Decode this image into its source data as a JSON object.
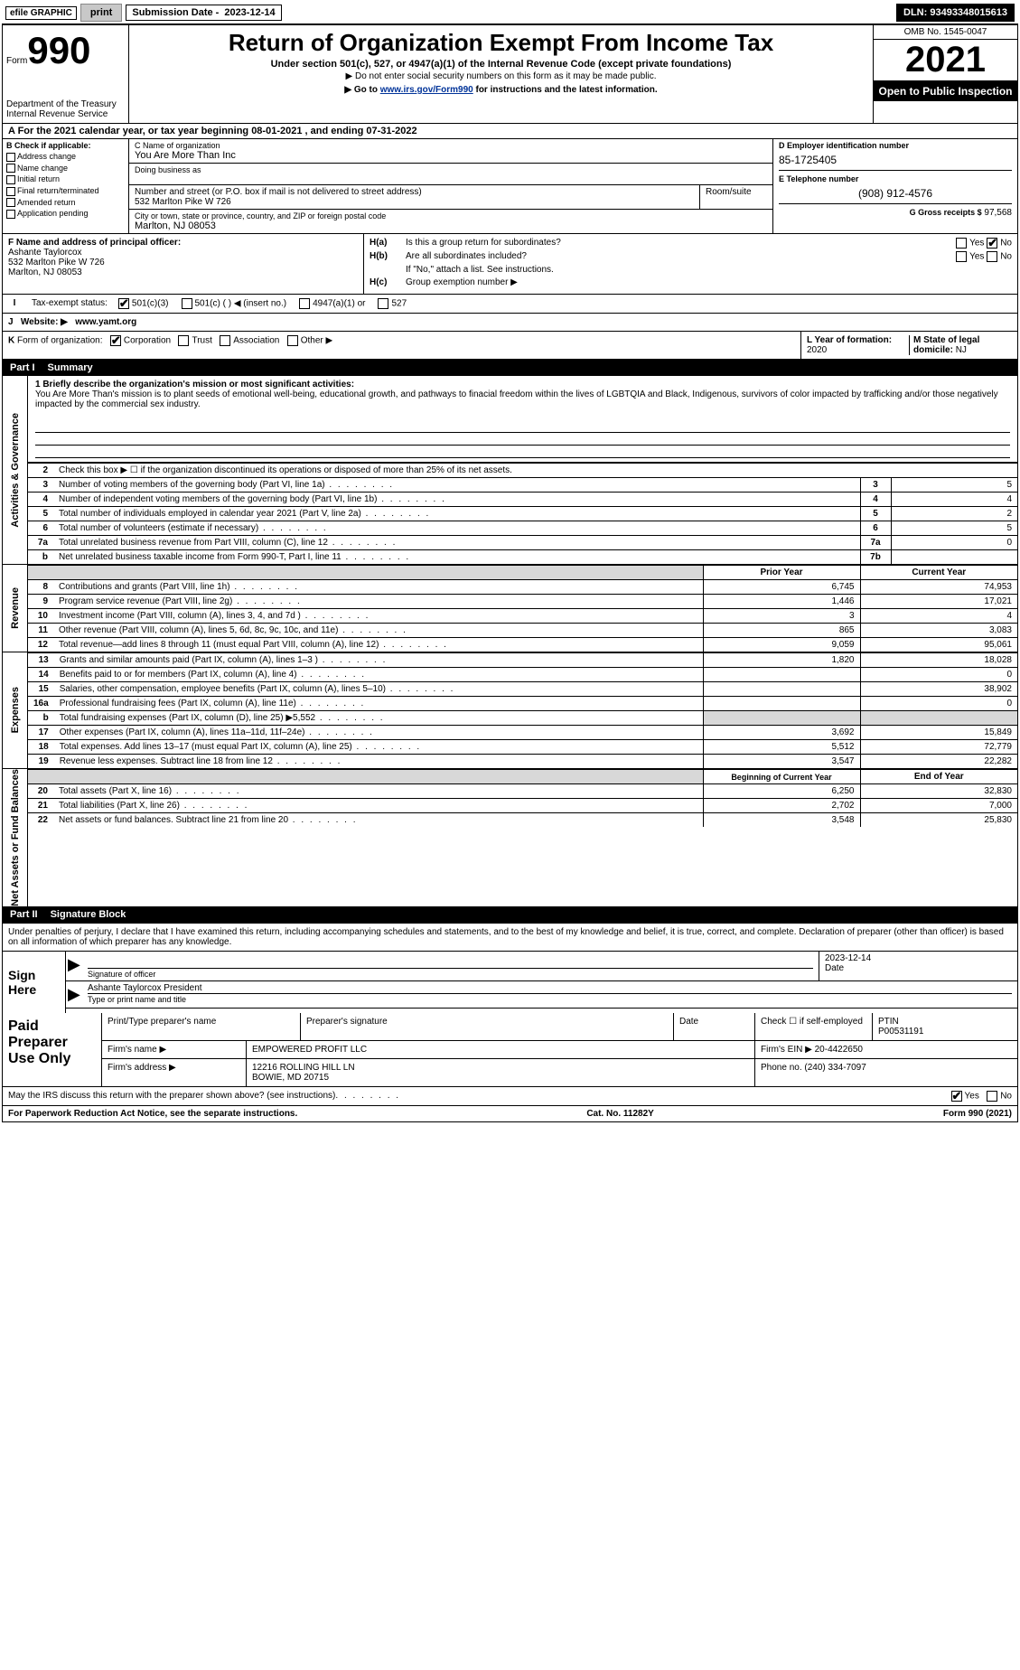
{
  "top": {
    "efile": "efile GRAPHIC",
    "print": "print",
    "sub_label": "Submission Date -",
    "sub_date": "2023-12-14",
    "dln_label": "DLN:",
    "dln": "93493348015613"
  },
  "header": {
    "form_prefix": "Form",
    "form_num": "990",
    "dept1": "Department of the Treasury",
    "dept2": "Internal Revenue Service",
    "title": "Return of Organization Exempt From Income Tax",
    "subtitle": "Under section 501(c), 527, or 4947(a)(1) of the Internal Revenue Code (except private foundations)",
    "note1": "▶ Do not enter social security numbers on this form as it may be made public.",
    "note2_pre": "▶ Go to ",
    "note2_link": "www.irs.gov/Form990",
    "note2_post": " for instructions and the latest information.",
    "omb": "OMB No. 1545-0047",
    "year": "2021",
    "open": "Open to Public Inspection"
  },
  "period": {
    "line_a": "A For the 2021 calendar year, or tax year beginning 08-01-2021    , and ending 07-31-2022"
  },
  "colB": {
    "label": "B Check if applicable:",
    "opts": [
      "Address change",
      "Name change",
      "Initial return",
      "Final return/terminated",
      "Amended return",
      "Application pending"
    ]
  },
  "colC": {
    "c_label": "C Name of organization",
    "c_name": "You Are More Than Inc",
    "dba_label": "Doing business as",
    "dba": "",
    "street_label": "Number and street (or P.O. box if mail is not delivered to street address)",
    "street": "532 Marlton Pike W 726",
    "suite_label": "Room/suite",
    "city_label": "City or town, state or province, country, and ZIP or foreign postal code",
    "city": "Marlton, NJ  08053"
  },
  "colD": {
    "d_label": "D Employer identification number",
    "d_val": "85-1725405",
    "e_label": "E Telephone number",
    "e_val": "(908) 912-4576",
    "g_label": "G Gross receipts $",
    "g_val": "97,568"
  },
  "rowF": {
    "f_label": "F Name and address of principal officer:",
    "f_name": "Ashante Taylorcox",
    "f_street": "532 Marlton Pike W 726",
    "f_city": "Marlton, NJ  08053"
  },
  "rowH": {
    "ha_label": "H(a)",
    "ha_text": "Is this a group return for subordinates?",
    "hb_label": "H(b)",
    "hb_text": "Are all subordinates included?",
    "hb_note": "If \"No,\" attach a list. See instructions.",
    "hc_label": "H(c)",
    "hc_text": "Group exemption number ▶",
    "yes": "Yes",
    "no": "No"
  },
  "rowI": {
    "i": "I",
    "label": "Tax-exempt status:",
    "opt1": "501(c)(3)",
    "opt2": "501(c) (  ) ◀ (insert no.)",
    "opt3": "4947(a)(1) or",
    "opt4": "527"
  },
  "rowJ": {
    "j": "J",
    "label": "Website: ▶",
    "url": "www.yamt.org"
  },
  "rowK": {
    "k": "K",
    "label": "Form of organization:",
    "opts": [
      "Corporation",
      "Trust",
      "Association",
      "Other ▶"
    ]
  },
  "rowLM": {
    "l_label": "L Year of formation:",
    "l_val": "2020",
    "m_label": "M State of legal domicile:",
    "m_val": "NJ"
  },
  "part1": {
    "part": "Part I",
    "title": "Summary"
  },
  "governance": {
    "side": "Activities & Governance",
    "l1_label": "1 Briefly describe the organization's mission or most significant activities:",
    "l1_text": "You Are More Than's mission is to plant seeds of emotional well-being, educational growth, and pathways to finacial freedom within the lives of LGBTQIA and Black, Indigenous, survivors of color impacted by trafficking and/or those negatively impacted by the commercial sex industry.",
    "l2": "Check this box ▶ ☐  if the organization discontinued its operations or disposed of more than 25% of its net assets.",
    "rows": [
      {
        "n": "3",
        "d": "Number of voting members of the governing body (Part VI, line 1a)",
        "b": "3",
        "v": "5"
      },
      {
        "n": "4",
        "d": "Number of independent voting members of the governing body (Part VI, line 1b)",
        "b": "4",
        "v": "4"
      },
      {
        "n": "5",
        "d": "Total number of individuals employed in calendar year 2021 (Part V, line 2a)",
        "b": "5",
        "v": "2"
      },
      {
        "n": "6",
        "d": "Total number of volunteers (estimate if necessary)",
        "b": "6",
        "v": "5"
      },
      {
        "n": "7a",
        "d": "Total unrelated business revenue from Part VIII, column (C), line 12",
        "b": "7a",
        "v": "0"
      },
      {
        "n": "b",
        "d": "Net unrelated business taxable income from Form 990-T, Part I, line 11",
        "b": "7b",
        "v": ""
      }
    ]
  },
  "rev_hdr": {
    "prior": "Prior Year",
    "curr": "Current Year"
  },
  "revenue": {
    "side": "Revenue",
    "rows": [
      {
        "n": "8",
        "d": "Contributions and grants (Part VIII, line 1h)",
        "p": "6,745",
        "c": "74,953"
      },
      {
        "n": "9",
        "d": "Program service revenue (Part VIII, line 2g)",
        "p": "1,446",
        "c": "17,021"
      },
      {
        "n": "10",
        "d": "Investment income (Part VIII, column (A), lines 3, 4, and 7d )",
        "p": "3",
        "c": "4"
      },
      {
        "n": "11",
        "d": "Other revenue (Part VIII, column (A), lines 5, 6d, 8c, 9c, 10c, and 11e)",
        "p": "865",
        "c": "3,083"
      },
      {
        "n": "12",
        "d": "Total revenue—add lines 8 through 11 (must equal Part VIII, column (A), line 12)",
        "p": "9,059",
        "c": "95,061"
      }
    ]
  },
  "expenses": {
    "side": "Expenses",
    "rows": [
      {
        "n": "13",
        "d": "Grants and similar amounts paid (Part IX, column (A), lines 1–3 )",
        "p": "1,820",
        "c": "18,028"
      },
      {
        "n": "14",
        "d": "Benefits paid to or for members (Part IX, column (A), line 4)",
        "p": "",
        "c": "0"
      },
      {
        "n": "15",
        "d": "Salaries, other compensation, employee benefits (Part IX, column (A), lines 5–10)",
        "p": "",
        "c": "38,902"
      },
      {
        "n": "16a",
        "d": "Professional fundraising fees (Part IX, column (A), line 11e)",
        "p": "",
        "c": "0"
      },
      {
        "n": "b",
        "d": "Total fundraising expenses (Part IX, column (D), line 25) ▶5,552",
        "p": "SHADE",
        "c": "SHADE"
      },
      {
        "n": "17",
        "d": "Other expenses (Part IX, column (A), lines 11a–11d, 11f–24e)",
        "p": "3,692",
        "c": "15,849"
      },
      {
        "n": "18",
        "d": "Total expenses. Add lines 13–17 (must equal Part IX, column (A), line 25)",
        "p": "5,512",
        "c": "72,779"
      },
      {
        "n": "19",
        "d": "Revenue less expenses. Subtract line 18 from line 12",
        "p": "3,547",
        "c": "22,282"
      }
    ]
  },
  "net_hdr": {
    "prior": "Beginning of Current Year",
    "curr": "End of Year"
  },
  "netassets": {
    "side": "Net Assets or Fund Balances",
    "rows": [
      {
        "n": "20",
        "d": "Total assets (Part X, line 16)",
        "p": "6,250",
        "c": "32,830"
      },
      {
        "n": "21",
        "d": "Total liabilities (Part X, line 26)",
        "p": "2,702",
        "c": "7,000"
      },
      {
        "n": "22",
        "d": "Net assets or fund balances. Subtract line 21 from line 20",
        "p": "3,548",
        "c": "25,830"
      }
    ]
  },
  "part2": {
    "part": "Part II",
    "title": "Signature Block"
  },
  "sig": {
    "declare": "Under penalties of perjury, I declare that I have examined this return, including accompanying schedules and statements, and to the best of my knowledge and belief, it is true, correct, and complete. Declaration of preparer (other than officer) is based on all information of which preparer has any knowledge.",
    "sign_here": "Sign Here",
    "sig_officer": "Signature of officer",
    "date_label": "Date",
    "date_val": "2023-12-14",
    "name_title": "Ashante Taylorcox President",
    "name_under": "Type or print name and title"
  },
  "paid": {
    "label": "Paid Preparer Use Only",
    "h1": "Print/Type preparer's name",
    "h2": "Preparer's signature",
    "h3": "Date",
    "h4": "Check ☐ if self-employed",
    "h5_label": "PTIN",
    "h5_val": "P00531191",
    "firm_label": "Firm's name   ▶",
    "firm_name": "EMPOWERED PROFIT LLC",
    "ein_label": "Firm's EIN ▶",
    "ein_val": "20-4422650",
    "addr_label": "Firm's address ▶",
    "addr1": "12216 ROLLING HILL LN",
    "addr2": "BOWIE, MD  20715",
    "phone_label": "Phone no.",
    "phone_val": "(240) 334-7097"
  },
  "discuss": {
    "text": "May the IRS discuss this return with the preparer shown above? (see instructions)",
    "yes": "Yes",
    "no": "No"
  },
  "footer": {
    "left": "For Paperwork Reduction Act Notice, see the separate instructions.",
    "mid": "Cat. No. 11282Y",
    "right": "Form 990 (2021)"
  }
}
